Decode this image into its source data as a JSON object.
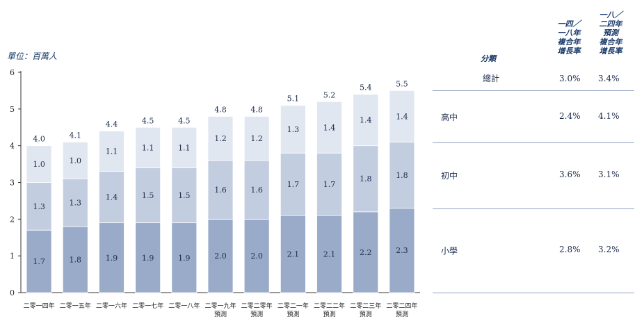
{
  "chart_data": {
    "type": "bar",
    "stacked": true,
    "unit_label": "單位：百萬人",
    "ylim": [
      0,
      6
    ],
    "yticks": [
      "0",
      "1",
      "2",
      "3",
      "4",
      "5",
      "6"
    ],
    "categories": [
      "二零一四年",
      "二零一五年",
      "二零一六年",
      "二零一七年",
      "二零一八年",
      "二零一九年\n預測",
      "二零二零年\n預測",
      "二零二一年\n預測",
      "二零二二年\n預測",
      "二零二三年\n預測",
      "二零二四年\n預測"
    ],
    "series": [
      {
        "name": "小學",
        "color": "#9aabc9",
        "values": [
          1.7,
          1.8,
          1.9,
          1.9,
          1.9,
          2.0,
          2.0,
          2.1,
          2.1,
          2.2,
          2.3
        ]
      },
      {
        "name": "初中",
        "color": "#c3cde0",
        "values": [
          1.3,
          1.3,
          1.4,
          1.5,
          1.5,
          1.6,
          1.6,
          1.7,
          1.7,
          1.8,
          1.8
        ]
      },
      {
        "name": "高中",
        "color": "#e1e7f1",
        "values": [
          1.0,
          1.0,
          1.1,
          1.1,
          1.1,
          1.2,
          1.2,
          1.3,
          1.4,
          1.4,
          1.4
        ]
      }
    ],
    "totals": [
      "4.0",
      "4.1",
      "4.4",
      "4.5",
      "4.5",
      "4.8",
      "4.8",
      "5.1",
      "5.2",
      "5.4",
      "5.5"
    ]
  },
  "table": {
    "headers": {
      "category": "分類",
      "cagr_hist": "一四／\n一八年\n複合年\n增長率",
      "cagr_fcst": "一八／\n二四年\n預測\n複合年\n增長率"
    },
    "rows": [
      {
        "label": "總計",
        "hist": "3.0%",
        "fcst": "3.4%"
      },
      {
        "label": "高中",
        "hist": "2.4%",
        "fcst": "4.1%"
      },
      {
        "label": "初中",
        "hist": "3.6%",
        "fcst": "3.1%"
      },
      {
        "label": "小學",
        "hist": "2.8%",
        "fcst": "3.2%"
      }
    ]
  }
}
